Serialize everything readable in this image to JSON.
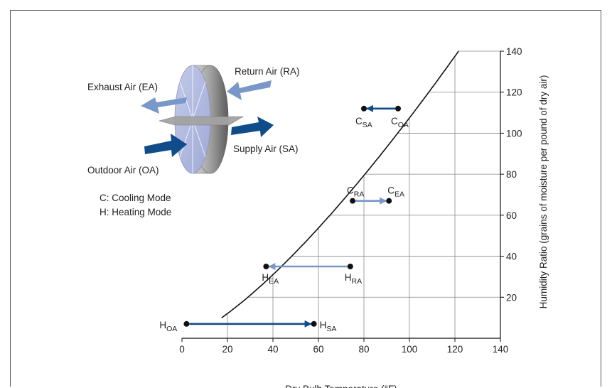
{
  "diagram": {
    "labels": {
      "exhaust": "Exhaust Air (EA)",
      "return": "Return Air (RA)",
      "supply": "Supply Air (SA)",
      "outdoor": "Outdoor Air (OA)",
      "cooling": "C: Cooling Mode",
      "heating": "H: Heating Mode"
    },
    "colors": {
      "dark": "#0f4c8a",
      "light": "#7a97c9",
      "grid": "#8a8a8a"
    }
  },
  "chart_data": {
    "type": "scatter",
    "xlabel": "Dry Bulb Temperature (°F)",
    "ylabel": "Humidity Ratio (grains of moisture per pound of dry air)",
    "xlim": [
      0,
      140
    ],
    "ylim": [
      0,
      140
    ],
    "x_ticks": [
      "0",
      "20",
      "40",
      "60",
      "80",
      "100",
      "120",
      "140"
    ],
    "y_ticks": [
      "20",
      "40",
      "60",
      "80",
      "100",
      "120",
      "140"
    ],
    "grid": true,
    "points": [
      {
        "id": "coa",
        "main": "C",
        "sub": "OA",
        "x": 95,
        "y": 112
      },
      {
        "id": "csa",
        "main": "C",
        "sub": "SA",
        "x": 80,
        "y": 112
      },
      {
        "id": "cra",
        "main": "C",
        "sub": "RA",
        "x": 75,
        "y": 67
      },
      {
        "id": "cea",
        "main": "C",
        "sub": "EA",
        "x": 91,
        "y": 67
      },
      {
        "id": "hra",
        "main": "H",
        "sub": "RA",
        "x": 74,
        "y": 35
      },
      {
        "id": "hea",
        "main": "H",
        "sub": "EA",
        "x": 37,
        "y": 35
      },
      {
        "id": "hoa",
        "main": "H",
        "sub": "OA",
        "x": 2,
        "y": 7
      },
      {
        "id": "hsa",
        "main": "H",
        "sub": "SA",
        "x": 58,
        "y": 7
      }
    ],
    "arrows": [
      {
        "from": "coa",
        "to": "csa",
        "color": "dark"
      },
      {
        "from": "cra",
        "to": "cea",
        "color": "light"
      },
      {
        "from": "hra",
        "to": "hea",
        "color": "light"
      },
      {
        "from": "hoa",
        "to": "hsa",
        "color": "dark"
      }
    ]
  }
}
